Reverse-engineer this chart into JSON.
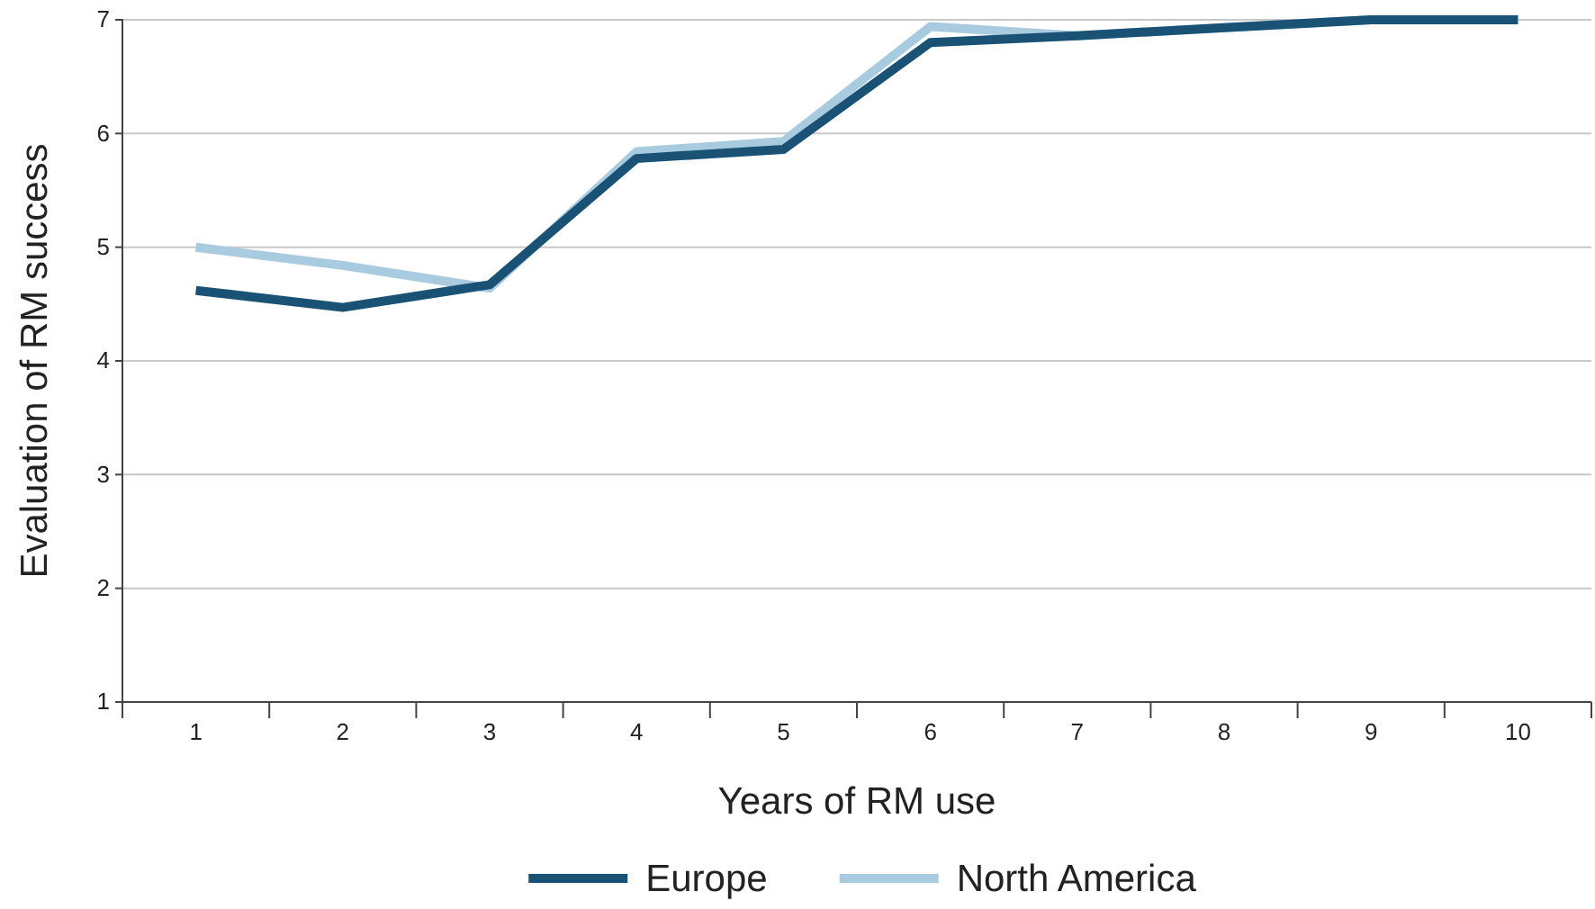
{
  "chart_data": {
    "type": "line",
    "xlabel": "Years of RM use",
    "ylabel": "Evaluation of RM success",
    "categories": [
      "1",
      "2",
      "3",
      "4",
      "5",
      "6",
      "7",
      "8",
      "9",
      "10"
    ],
    "series": [
      {
        "name": "Europe",
        "color": "#1a5276",
        "values": [
          4.62,
          4.47,
          4.67,
          5.78,
          5.86,
          6.8,
          6.86,
          6.93,
          7.0,
          7.0
        ]
      },
      {
        "name": "North America",
        "color": "#a9cbe0",
        "values": [
          5.0,
          4.84,
          4.64,
          5.84,
          5.93,
          6.94,
          6.86,
          6.93,
          7.0,
          7.0
        ]
      }
    ],
    "ylim": [
      1,
      7
    ],
    "yticks": [
      1,
      2,
      3,
      4,
      5,
      6,
      7
    ],
    "grid": "y",
    "legend": "bottom",
    "marker": "none",
    "line_style": "solid"
  }
}
